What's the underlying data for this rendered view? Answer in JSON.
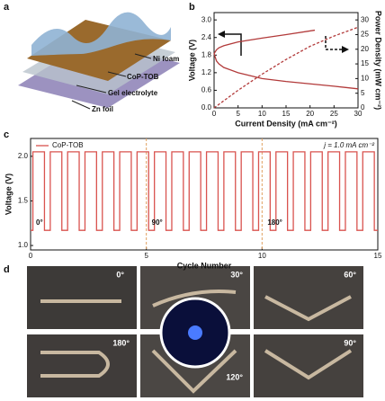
{
  "panel_labels": [
    "a",
    "b",
    "c",
    "d"
  ],
  "diagram_labels": [
    "Ni foam",
    "CoP-TOB",
    "Gel electrolyte",
    "Zn foil"
  ],
  "photo_labels": [
    "0°",
    "30°",
    "60°",
    "180°",
    "120°",
    "90°"
  ],
  "chart_data": [
    {
      "type": "line",
      "xlabel": "Current Density (mA cm⁻²)",
      "ylabel": "Voltage (V)",
      "y2label": "Power Density (mW cm⁻²)",
      "xlim": [
        0,
        30
      ],
      "xticks": [
        0,
        5,
        10,
        15,
        20,
        25,
        30
      ],
      "ylim": [
        0,
        3.25
      ],
      "yticks": [
        {
          "value": 0,
          "label": "0.0"
        },
        0.6,
        1.2,
        1.8,
        2.4,
        {
          "value": 3,
          "label": "3.0"
        }
      ],
      "y2lim": [
        0,
        32.5
      ],
      "y2ticks": [
        0,
        5,
        10,
        15,
        20,
        25,
        30
      ],
      "series": [
        {
          "color": "#b23a3a",
          "linestyle": "solid",
          "x": [
            0,
            0.5,
            1,
            2,
            5,
            10,
            15,
            21
          ],
          "values": [
            1.85,
            1.98,
            2.05,
            2.12,
            2.25,
            2.38,
            2.5,
            2.65
          ]
        },
        {
          "color": "#b23a3a",
          "linestyle": "solid",
          "x": [
            0,
            0.5,
            1,
            2,
            5,
            10,
            15,
            20,
            25,
            30
          ],
          "values": [
            1.85,
            1.6,
            1.5,
            1.38,
            1.2,
            1.0,
            0.9,
            0.82,
            0.74,
            0.65
          ]
        },
        {
          "color": "#b23a3a",
          "linestyle": "dashed",
          "axis": "y2",
          "x": [
            0,
            5,
            10,
            15,
            20,
            25,
            30
          ],
          "values": [
            0,
            6,
            11.5,
            16.5,
            21,
            24.5,
            27.5
          ]
        }
      ]
    },
    {
      "type": "line",
      "xlabel": "Cycle Number",
      "ylabel": "Voltage (V)",
      "annotation": "j = 1.0 mA cm⁻²",
      "angle_labels": [
        "0°",
        "90°",
        "180°"
      ],
      "vlines": [
        5,
        10
      ],
      "xlim": [
        0,
        15
      ],
      "xticks": [
        0,
        5,
        10,
        15
      ],
      "ylim": [
        0.95,
        2.2
      ],
      "yticks": [
        {
          "value": 1,
          "label": "1.0"
        },
        1.5,
        {
          "value": 2,
          "label": "2.0"
        }
      ],
      "x": [
        0,
        0.1,
        0.1,
        0.6,
        0.6,
        0.85,
        0.85,
        1.35,
        1.35,
        1.6,
        1.6,
        2.1,
        2.1,
        2.35,
        2.35,
        2.85,
        2.85,
        3.1,
        3.1,
        3.6,
        3.6,
        3.85,
        3.85,
        4.35,
        4.35,
        4.6,
        4.6,
        5.1,
        5.1,
        5.35,
        5.35,
        5.85,
        5.85,
        6.1,
        6.1,
        6.6,
        6.6,
        6.85,
        6.85,
        7.35,
        7.35,
        7.6,
        7.6,
        8.1,
        8.1,
        8.35,
        8.35,
        8.85,
        8.85,
        9.1,
        9.1,
        9.6,
        9.6,
        9.85,
        9.85,
        10.35,
        10.35,
        10.6,
        10.6,
        11.1,
        11.1,
        11.35,
        11.35,
        11.85,
        11.85,
        12.1,
        12.1,
        12.6,
        12.6,
        12.85,
        12.85,
        13.35,
        13.35,
        13.6,
        13.6,
        14.1,
        14.1,
        14.35,
        14.35,
        14.85,
        14.85,
        15
      ],
      "series": [
        {
          "name": "CoP-TOB",
          "color": "#d9534f",
          "values": [
            1.17,
            1.17,
            2.05,
            2.05,
            1.17,
            1.17,
            2.05,
            2.05,
            1.17,
            1.17,
            2.05,
            2.05,
            1.17,
            1.17,
            2.05,
            2.05,
            1.17,
            1.17,
            2.05,
            2.05,
            1.17,
            1.17,
            2.05,
            2.05,
            1.17,
            1.17,
            2.05,
            2.05,
            1.17,
            1.17,
            2.05,
            2.05,
            1.17,
            1.17,
            2.05,
            2.05,
            1.17,
            1.17,
            2.05,
            2.05,
            1.17,
            1.17,
            2.05,
            2.05,
            1.17,
            1.17,
            2.05,
            2.05,
            1.17,
            1.17,
            2.05,
            2.05,
            1.17,
            1.17,
            2.05,
            2.05,
            1.17,
            1.17,
            2.05,
            2.05,
            1.17,
            1.17,
            2.05,
            2.05,
            1.17,
            1.17,
            2.05,
            2.05,
            1.17,
            1.17,
            2.05,
            2.05,
            1.17,
            1.17,
            2.05,
            2.05,
            1.17,
            1.17,
            2.05,
            2.05,
            1.17,
            1.17
          ]
        }
      ]
    }
  ]
}
